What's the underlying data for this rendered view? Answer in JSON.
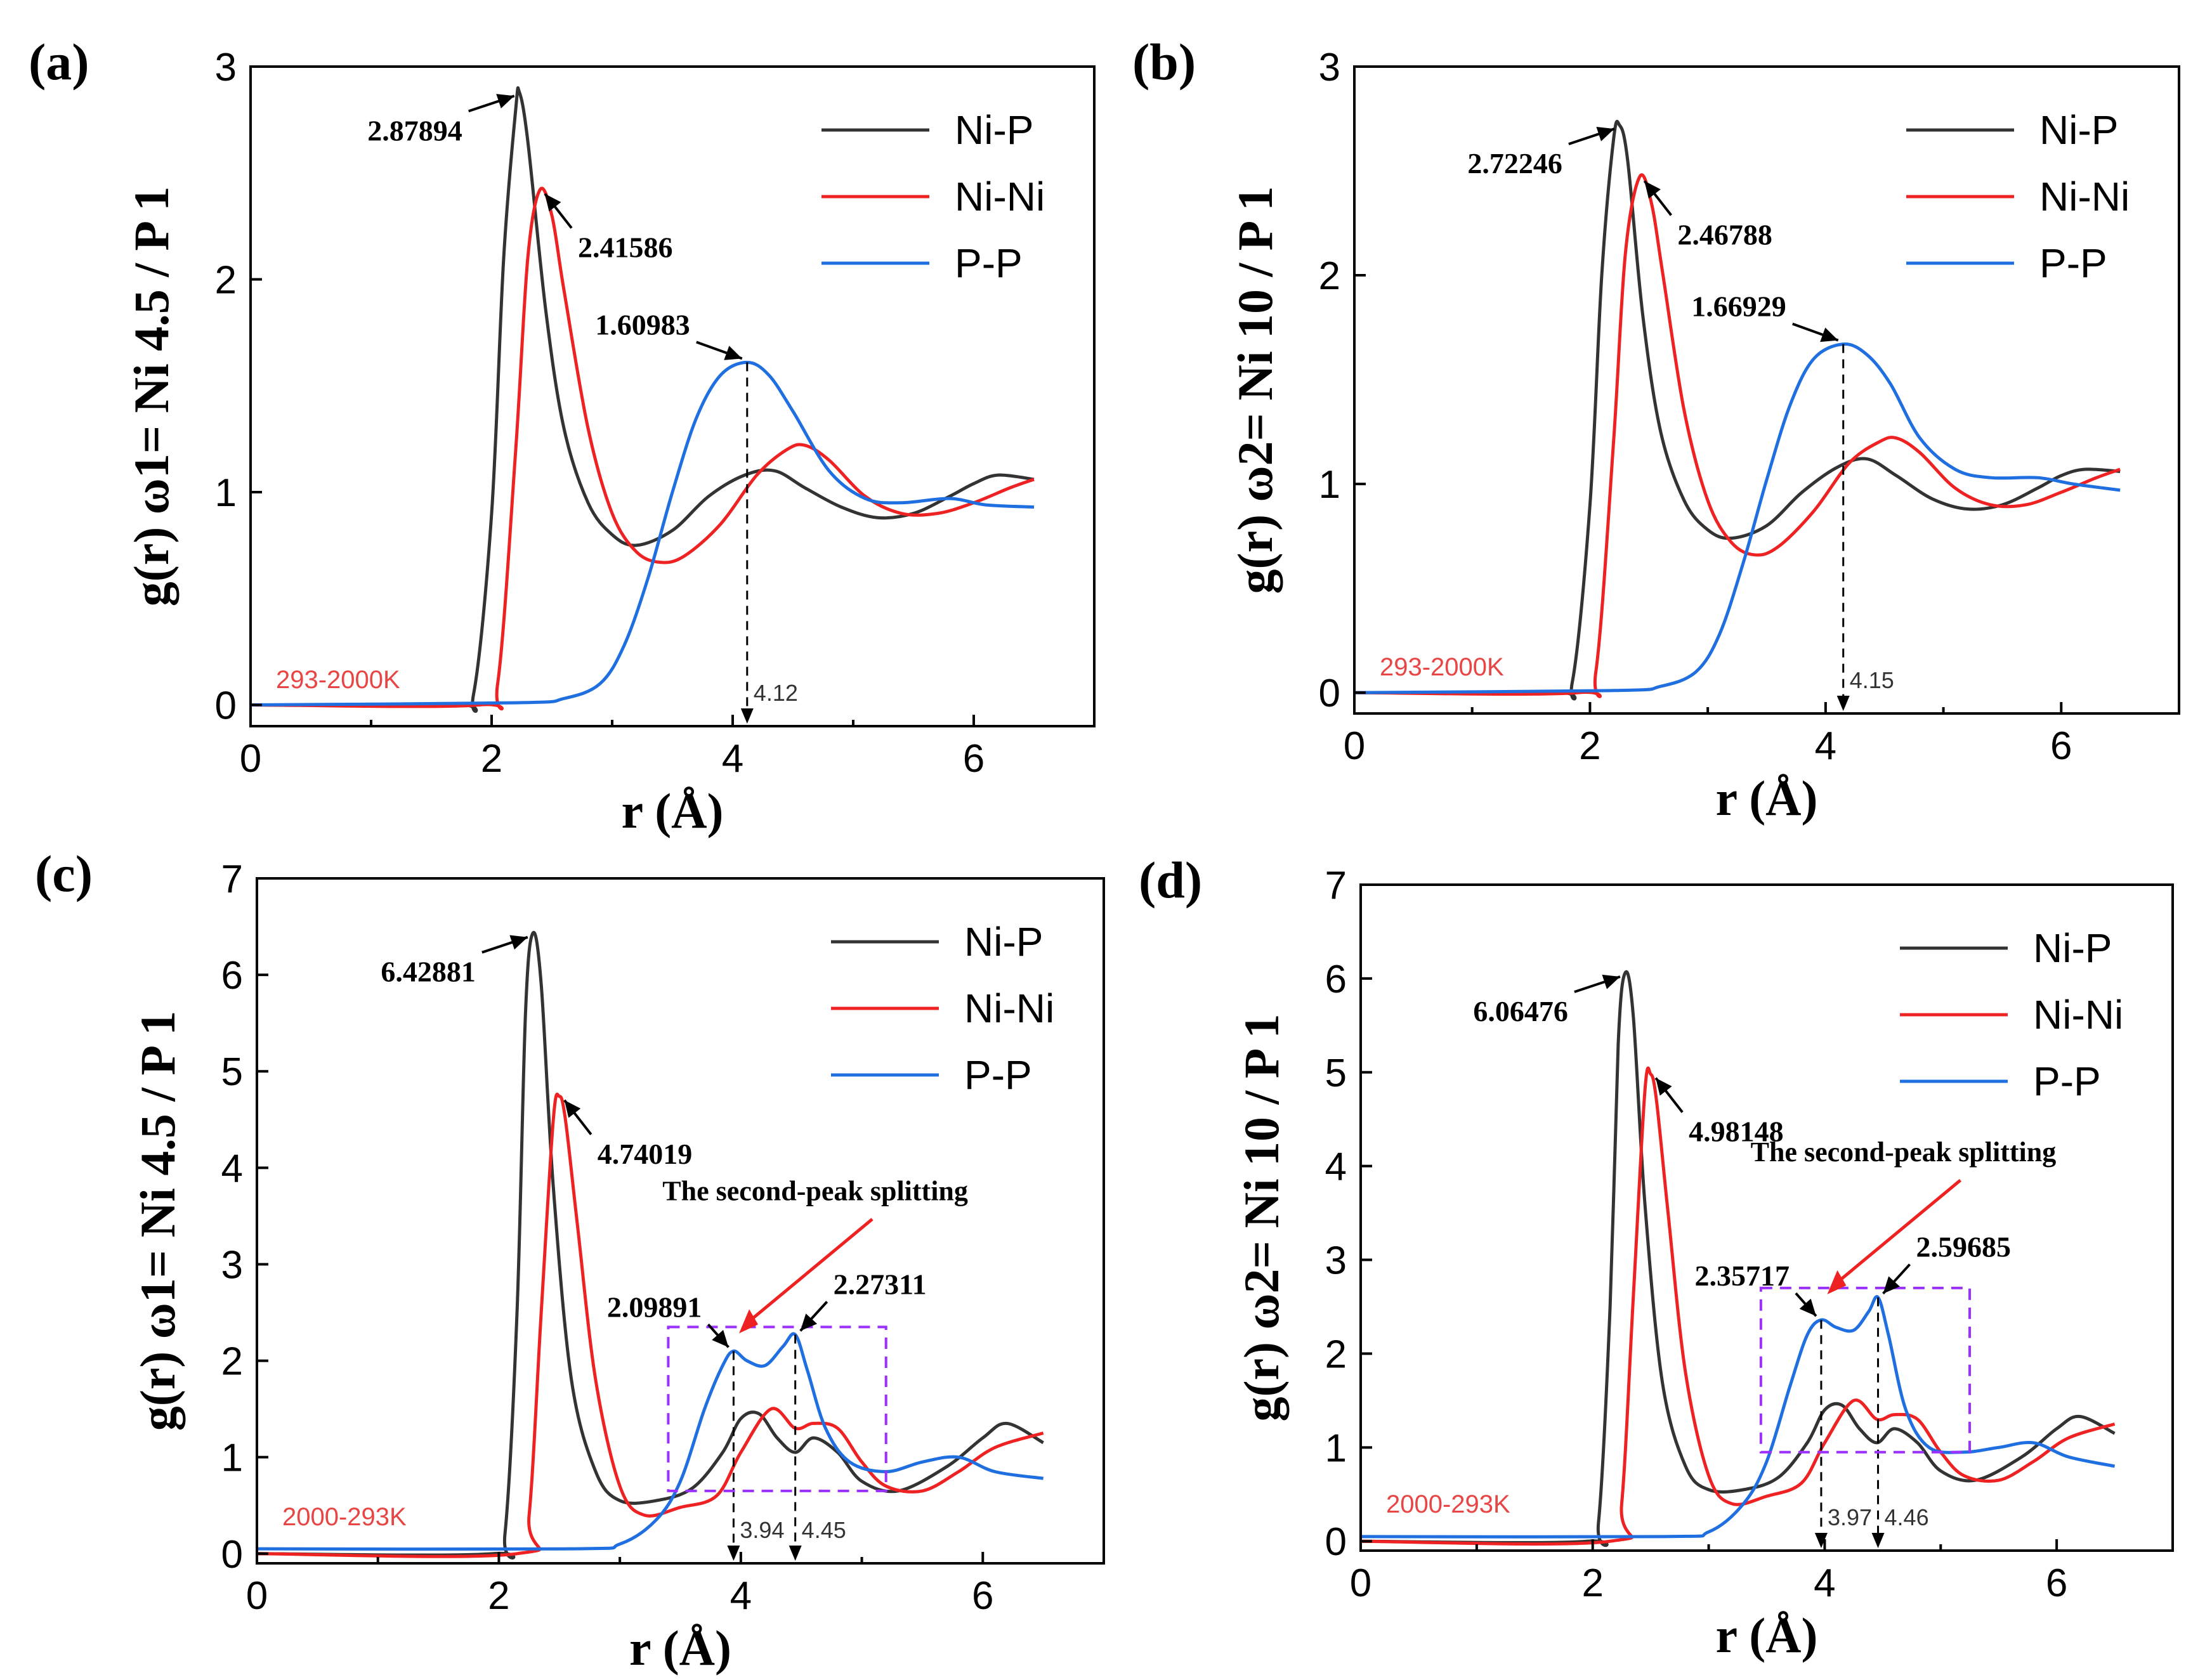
{
  "colors": {
    "ni_p": "#333333",
    "ni_ni": "#ee2222",
    "p_p": "#1f6fe0",
    "temperature": "#e84545",
    "box": "#9b30ff",
    "split_arrow": "#ee2222"
  },
  "chart_data": [
    {
      "panel": "(a)",
      "type": "line",
      "xlabel": "r (Å)",
      "ylabel": "g(r) ω1= Ni 4.5 / P 1",
      "xlim": [
        0,
        7
      ],
      "ylim": [
        -0.1,
        3
      ],
      "xticks": [
        0,
        2,
        4,
        6
      ],
      "yticks": [
        0,
        1,
        2,
        3
      ],
      "legend": [
        "Ni-P",
        "Ni-Ni",
        "P-P"
      ],
      "legend_position": "top-right",
      "temperature_label": "293-2000K",
      "series": [
        {
          "name": "Ni-P",
          "x": [
            0,
            1.7,
            1.85,
            2.0,
            2.1,
            2.2,
            2.23,
            2.3,
            2.45,
            2.6,
            2.8,
            3.0,
            3.2,
            3.5,
            3.8,
            4.1,
            4.35,
            4.6,
            4.9,
            5.2,
            5.5,
            5.8,
            6.0,
            6.2,
            6.5
          ],
          "y": [
            0,
            0,
            0.05,
            0.9,
            2.1,
            2.8,
            2.88,
            2.65,
            1.85,
            1.3,
            0.95,
            0.8,
            0.75,
            0.82,
            0.98,
            1.08,
            1.1,
            1.02,
            0.93,
            0.88,
            0.9,
            0.98,
            1.04,
            1.08,
            1.06
          ]
        },
        {
          "name": "Ni-Ni",
          "x": [
            0,
            1.9,
            2.05,
            2.2,
            2.3,
            2.4,
            2.5,
            2.6,
            2.8,
            3.0,
            3.2,
            3.4,
            3.6,
            3.9,
            4.2,
            4.45,
            4.6,
            4.8,
            5.1,
            5.4,
            5.7,
            6.0,
            6.3,
            6.5
          ],
          "y": [
            0,
            0,
            0.1,
            1.2,
            2.1,
            2.42,
            2.3,
            1.95,
            1.3,
            0.9,
            0.72,
            0.67,
            0.7,
            0.85,
            1.08,
            1.2,
            1.22,
            1.15,
            0.98,
            0.9,
            0.9,
            0.95,
            1.02,
            1.06
          ]
        },
        {
          "name": "P-P",
          "x": [
            0,
            2.2,
            2.6,
            2.9,
            3.1,
            3.3,
            3.5,
            3.7,
            3.9,
            4.12,
            4.3,
            4.5,
            4.8,
            5.1,
            5.4,
            5.8,
            6.1,
            6.5
          ],
          "y": [
            0,
            0.01,
            0.03,
            0.1,
            0.28,
            0.6,
            1.0,
            1.35,
            1.55,
            1.61,
            1.55,
            1.38,
            1.1,
            0.97,
            0.95,
            0.97,
            0.94,
            0.93
          ]
        }
      ],
      "annotations": [
        {
          "text": "2.87894",
          "x": 2.23,
          "y": 2.88
        },
        {
          "text": "2.41586",
          "x": 2.4,
          "y": 2.42
        },
        {
          "text": "1.60983",
          "x": 4.12,
          "y": 1.61
        }
      ],
      "markers": [
        {
          "label": "4.12",
          "x": 4.12
        }
      ],
      "box": null,
      "split_label": ""
    },
    {
      "panel": "(b)",
      "type": "line",
      "xlabel": "r (Å)",
      "ylabel": "g(r) ω2= Ni 10 / P 1",
      "xlim": [
        0,
        7
      ],
      "ylim": [
        -0.1,
        3
      ],
      "xticks": [
        0,
        2,
        4,
        6
      ],
      "yticks": [
        0,
        1,
        2,
        3
      ],
      "legend": [
        "Ni-P",
        "Ni-Ni",
        "P-P"
      ],
      "legend_position": "top-right",
      "temperature_label": "293-2000K",
      "series": [
        {
          "name": "Ni-P",
          "x": [
            0,
            1.7,
            1.85,
            2.0,
            2.1,
            2.2,
            2.25,
            2.32,
            2.45,
            2.6,
            2.8,
            3.0,
            3.2,
            3.5,
            3.8,
            4.1,
            4.35,
            4.6,
            4.9,
            5.2,
            5.5,
            5.8,
            6.0,
            6.2,
            6.5
          ],
          "y": [
            0,
            0,
            0.05,
            0.9,
            2.0,
            2.65,
            2.72,
            2.55,
            1.8,
            1.25,
            0.92,
            0.78,
            0.74,
            0.8,
            0.96,
            1.08,
            1.12,
            1.04,
            0.93,
            0.88,
            0.9,
            0.98,
            1.04,
            1.07,
            1.06
          ]
        },
        {
          "name": "Ni-Ni",
          "x": [
            0,
            1.9,
            2.05,
            2.2,
            2.3,
            2.42,
            2.52,
            2.62,
            2.8,
            3.0,
            3.2,
            3.4,
            3.6,
            3.9,
            4.2,
            4.45,
            4.6,
            4.8,
            5.1,
            5.4,
            5.7,
            6.0,
            6.3,
            6.5
          ],
          "y": [
            0,
            0,
            0.1,
            1.2,
            2.1,
            2.47,
            2.35,
            2.0,
            1.35,
            0.92,
            0.72,
            0.66,
            0.7,
            0.87,
            1.1,
            1.2,
            1.22,
            1.15,
            0.98,
            0.9,
            0.9,
            0.96,
            1.03,
            1.07
          ]
        },
        {
          "name": "P-P",
          "x": [
            0,
            2.2,
            2.6,
            2.9,
            3.1,
            3.3,
            3.5,
            3.7,
            3.9,
            4.15,
            4.35,
            4.55,
            4.8,
            5.1,
            5.4,
            5.8,
            6.1,
            6.5
          ],
          "y": [
            0,
            0.01,
            0.03,
            0.1,
            0.28,
            0.62,
            1.02,
            1.38,
            1.6,
            1.67,
            1.62,
            1.48,
            1.22,
            1.07,
            1.03,
            1.03,
            1.0,
            0.97
          ]
        }
      ],
      "annotations": [
        {
          "text": "2.72246",
          "x": 2.25,
          "y": 2.72
        },
        {
          "text": "2.46788",
          "x": 2.42,
          "y": 2.47
        },
        {
          "text": "1.66929",
          "x": 4.15,
          "y": 1.67
        }
      ],
      "markers": [
        {
          "label": "4.15",
          "x": 4.15
        }
      ],
      "box": null,
      "split_label": ""
    },
    {
      "panel": "(c)",
      "type": "line",
      "xlabel": "r (Å)",
      "ylabel": "g(r) ω1= Ni 4.5 / P 1",
      "xlim": [
        0,
        7
      ],
      "ylim": [
        -0.1,
        7
      ],
      "xticks": [
        0,
        2,
        4,
        6
      ],
      "yticks": [
        0,
        1,
        2,
        3,
        4,
        5,
        6,
        7
      ],
      "legend": [
        "Ni-P",
        "Ni-Ni",
        "P-P"
      ],
      "legend_position": "top-right",
      "temperature_label": "2000-293K",
      "series": [
        {
          "name": "Ni-P",
          "x": [
            0,
            1.95,
            2.05,
            2.15,
            2.22,
            2.28,
            2.35,
            2.45,
            2.6,
            2.8,
            3.0,
            3.3,
            3.6,
            3.85,
            4.0,
            4.15,
            4.3,
            4.45,
            4.6,
            4.8,
            5.0,
            5.3,
            5.7,
            6.0,
            6.2,
            6.5
          ],
          "y": [
            0,
            0,
            0.2,
            2.5,
            5.6,
            6.43,
            5.9,
            3.8,
            1.8,
            0.85,
            0.55,
            0.55,
            0.68,
            1.05,
            1.4,
            1.45,
            1.2,
            1.05,
            1.2,
            1.05,
            0.75,
            0.65,
            0.9,
            1.2,
            1.35,
            1.15
          ]
        },
        {
          "name": "Ni-Ni",
          "x": [
            0,
            2.15,
            2.25,
            2.35,
            2.45,
            2.5,
            2.55,
            2.65,
            2.8,
            3.0,
            3.2,
            3.5,
            3.8,
            4.0,
            4.25,
            4.45,
            4.6,
            4.8,
            5.0,
            5.2,
            5.5,
            5.8,
            6.1,
            6.5
          ],
          "y": [
            0,
            0,
            0.4,
            2.5,
            4.5,
            4.74,
            4.5,
            3.4,
            1.8,
            0.7,
            0.4,
            0.48,
            0.6,
            1.05,
            1.5,
            1.3,
            1.35,
            1.3,
            0.95,
            0.7,
            0.65,
            0.85,
            1.1,
            1.25
          ]
        },
        {
          "name": "P-P",
          "x": [
            0,
            2.6,
            3.0,
            3.3,
            3.5,
            3.7,
            3.85,
            3.94,
            4.05,
            4.2,
            4.35,
            4.45,
            4.55,
            4.7,
            4.9,
            5.2,
            5.5,
            5.8,
            6.1,
            6.5
          ],
          "y": [
            0.05,
            0.05,
            0.1,
            0.35,
            0.75,
            1.5,
            1.95,
            2.1,
            2.0,
            1.95,
            2.15,
            2.27,
            1.9,
            1.3,
            0.95,
            0.85,
            0.95,
            1.0,
            0.85,
            0.78
          ]
        }
      ],
      "annotations": [
        {
          "text": "6.42881",
          "x": 2.28,
          "y": 6.43
        },
        {
          "text": "4.74019",
          "x": 2.5,
          "y": 4.74
        },
        {
          "text": "2.09891",
          "x": 3.94,
          "y": 2.1
        },
        {
          "text": "2.27311",
          "x": 4.45,
          "y": 2.27
        }
      ],
      "markers": [
        {
          "label": "3.94",
          "x": 3.94
        },
        {
          "label": "4.45",
          "x": 4.45
        }
      ],
      "box": {
        "x0": 3.4,
        "x1": 5.2,
        "y0": 0.65,
        "y1": 2.35
      },
      "split_label": "The second-peak splitting"
    },
    {
      "panel": "(d)",
      "type": "line",
      "xlabel": "r (Å)",
      "ylabel": "g(r) ω2= Ni 10 / P 1",
      "xlim": [
        0,
        7
      ],
      "ylim": [
        -0.1,
        7
      ],
      "xticks": [
        0,
        2,
        4,
        6
      ],
      "yticks": [
        0,
        1,
        2,
        3,
        4,
        5,
        6,
        7
      ],
      "legend": [
        "Ni-P",
        "Ni-Ni",
        "P-P"
      ],
      "legend_position": "top-right",
      "temperature_label": "2000-293K",
      "series": [
        {
          "name": "Ni-P",
          "x": [
            0,
            1.95,
            2.05,
            2.15,
            2.22,
            2.28,
            2.35,
            2.45,
            2.6,
            2.8,
            3.0,
            3.3,
            3.6,
            3.85,
            4.0,
            4.15,
            4.3,
            4.45,
            4.6,
            4.8,
            5.0,
            5.3,
            5.7,
            6.0,
            6.2,
            6.5
          ],
          "y": [
            0,
            0,
            0.2,
            2.5,
            5.3,
            6.06,
            5.6,
            3.6,
            1.7,
            0.8,
            0.55,
            0.55,
            0.68,
            1.05,
            1.4,
            1.45,
            1.2,
            1.05,
            1.2,
            1.05,
            0.75,
            0.65,
            0.9,
            1.2,
            1.33,
            1.15
          ]
        },
        {
          "name": "Ni-Ni",
          "x": [
            0,
            2.15,
            2.25,
            2.35,
            2.45,
            2.5,
            2.55,
            2.65,
            2.8,
            3.0,
            3.2,
            3.5,
            3.8,
            4.0,
            4.25,
            4.45,
            4.6,
            4.8,
            5.0,
            5.2,
            5.5,
            5.8,
            6.1,
            6.5
          ],
          "y": [
            0,
            0,
            0.4,
            2.6,
            4.8,
            4.98,
            4.7,
            3.5,
            1.8,
            0.7,
            0.4,
            0.48,
            0.62,
            1.05,
            1.5,
            1.3,
            1.35,
            1.3,
            0.95,
            0.7,
            0.65,
            0.85,
            1.1,
            1.25
          ]
        },
        {
          "name": "P-P",
          "x": [
            0,
            2.6,
            3.0,
            3.3,
            3.5,
            3.7,
            3.85,
            3.97,
            4.1,
            4.25,
            4.38,
            4.46,
            4.55,
            4.7,
            4.9,
            5.2,
            5.5,
            5.8,
            6.1,
            6.5
          ],
          "y": [
            0.05,
            0.05,
            0.1,
            0.4,
            0.85,
            1.65,
            2.2,
            2.36,
            2.28,
            2.25,
            2.45,
            2.6,
            2.2,
            1.4,
            1.0,
            0.95,
            1.0,
            1.05,
            0.9,
            0.8
          ]
        }
      ],
      "annotations": [
        {
          "text": "6.06476",
          "x": 2.28,
          "y": 6.06
        },
        {
          "text": "4.98148",
          "x": 2.5,
          "y": 4.98
        },
        {
          "text": "2.35717",
          "x": 3.97,
          "y": 2.36
        },
        {
          "text": "2.59685",
          "x": 4.46,
          "y": 2.6
        }
      ],
      "markers": [
        {
          "label": "3.97",
          "x": 3.97
        },
        {
          "label": "4.46",
          "x": 4.46
        }
      ],
      "box": {
        "x0": 3.45,
        "x1": 5.25,
        "y0": 0.95,
        "y1": 2.7
      },
      "split_label": "The second-peak splitting"
    }
  ]
}
